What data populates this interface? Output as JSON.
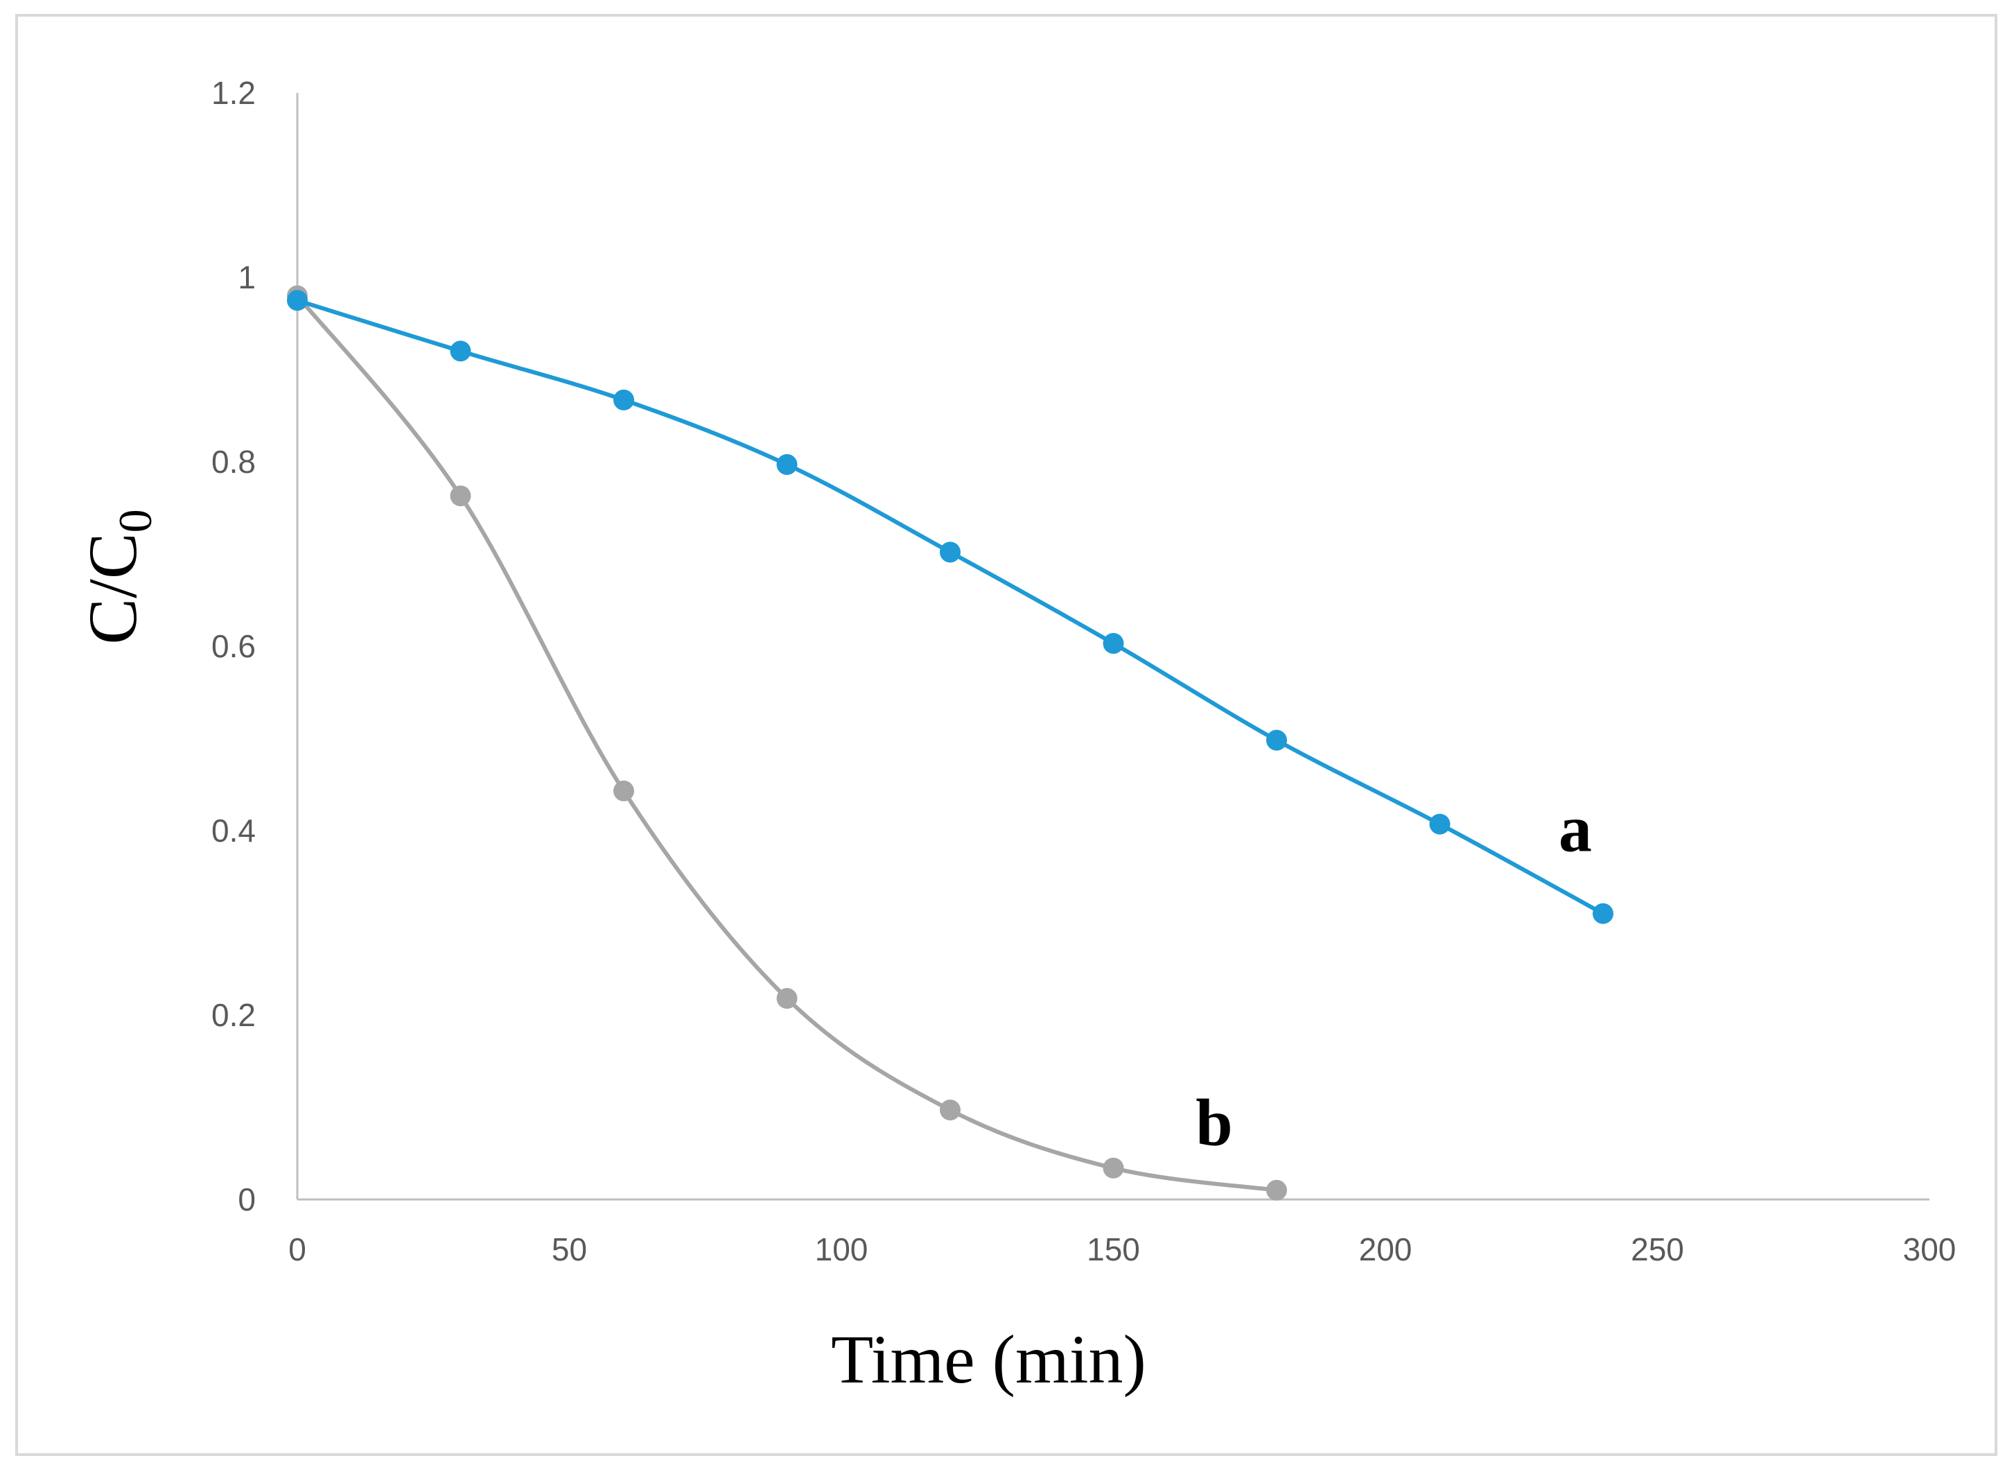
{
  "chart_data": {
    "type": "line",
    "xlabel": "Time (min)",
    "ylabel": "C/C",
    "ylabel_subscript": "0",
    "xlim": [
      0,
      300
    ],
    "ylim": [
      0,
      1.2
    ],
    "x_ticks": [
      "0",
      "50",
      "100",
      "150",
      "200",
      "250",
      "300"
    ],
    "y_ticks": [
      "0",
      "0.2",
      "0.4",
      "0.6",
      "0.8",
      "1",
      "1.2"
    ],
    "grid": false,
    "legend": "none",
    "series": [
      {
        "label": "a",
        "color": "#1f9ad6",
        "x": [
          0,
          30,
          60,
          90,
          120,
          150,
          180,
          210,
          240
        ],
        "y": [
          0.975,
          0.92,
          0.867,
          0.797,
          0.702,
          0.603,
          0.498,
          0.407,
          0.31
        ]
      },
      {
        "label": "b",
        "color": "#a6a6a6",
        "x": [
          0,
          30,
          60,
          90,
          120,
          150,
          180
        ],
        "y": [
          0.98,
          0.763,
          0.443,
          0.218,
          0.097,
          0.034,
          0.01
        ]
      }
    ]
  }
}
